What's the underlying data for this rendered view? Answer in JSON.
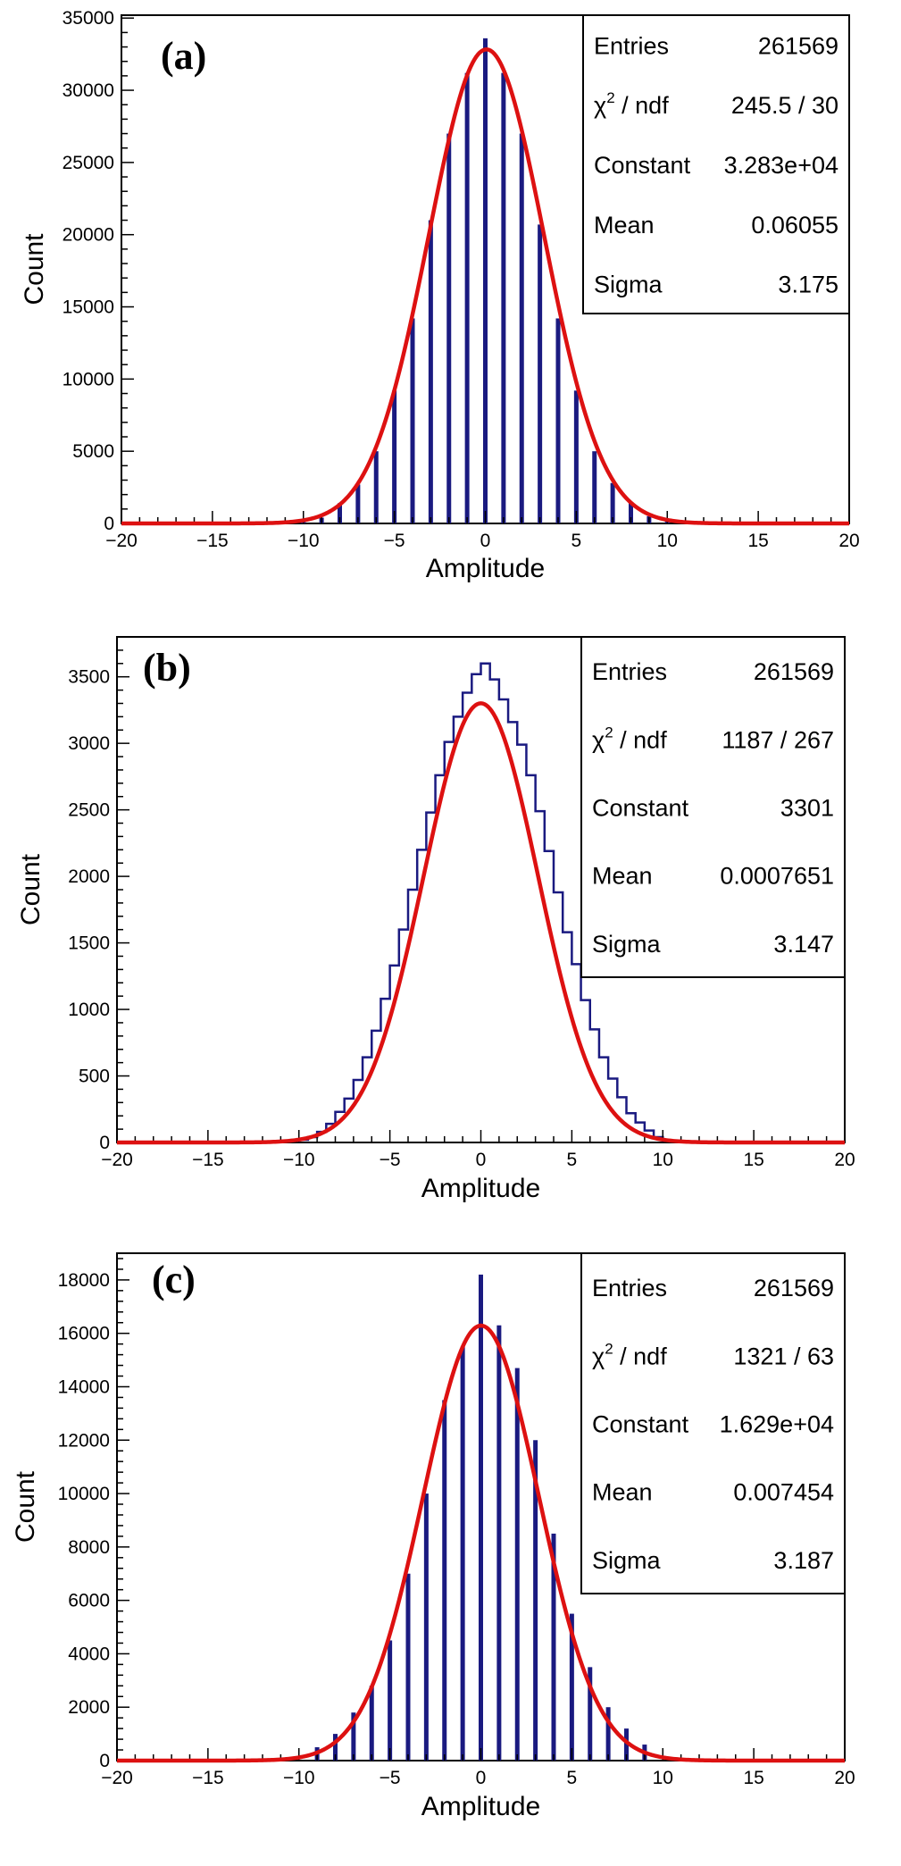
{
  "chart_data": [
    {
      "type": "bar",
      "panel_label": "(a)",
      "title": "",
      "xlabel": "Amplitude",
      "ylabel": "Count",
      "xlim": [
        -20,
        20
      ],
      "ylim": [
        0,
        35200
      ],
      "xticks": [
        -20,
        -15,
        -10,
        -5,
        0,
        5,
        10,
        15,
        20
      ],
      "xtick_labels": [
        "−20",
        "−15",
        "−10",
        "−5",
        "0",
        "5",
        "10",
        "15",
        "20"
      ],
      "yticks": [
        0,
        5000,
        10000,
        15000,
        20000,
        25000,
        30000,
        35000
      ],
      "ytick_labels": [
        "0",
        "5000",
        "10000",
        "15000",
        "20000",
        "25000",
        "30000",
        "35000"
      ],
      "grid": false,
      "series": [
        {
          "name": "histogram",
          "kind": "bars",
          "color": "#1a1a80",
          "x": [
            -10,
            -9,
            -8,
            -7,
            -6,
            -5,
            -4,
            -3,
            -2,
            -1,
            0,
            1,
            2,
            3,
            4,
            5,
            6,
            7,
            8,
            9,
            10
          ],
          "values": [
            140,
            400,
            1400,
            2700,
            5000,
            9200,
            14200,
            21000,
            27000,
            31200,
            33600,
            31200,
            27000,
            20700,
            14200,
            9200,
            5000,
            2800,
            1400,
            500,
            150
          ]
        },
        {
          "name": "Gaussian fit",
          "kind": "fit",
          "color": "#dd1111",
          "constant": 32830,
          "mean": 0.06055,
          "sigma": 3.175
        }
      ],
      "stats": {
        "rows": [
          {
            "label": "Entries",
            "value": "261569"
          },
          {
            "label": "χ",
            "sup": "2",
            "label_suffix": " / ndf",
            "value": "245.5 / 30"
          },
          {
            "label": "Constant",
            "value": "3.283e+04"
          },
          {
            "label": "Mean",
            "value": "0.06055"
          },
          {
            "label": "Sigma",
            "value": "3.175"
          }
        ]
      }
    },
    {
      "type": "bar",
      "panel_label": "(b)",
      "title": "",
      "xlabel": "Amplitude",
      "ylabel": "Count",
      "xlim": [
        -20,
        20
      ],
      "ylim": [
        0,
        3800
      ],
      "xticks": [
        -20,
        -15,
        -10,
        -5,
        0,
        5,
        10,
        15,
        20
      ],
      "xtick_labels": [
        "−20",
        "−15",
        "−10",
        "−5",
        "0",
        "5",
        "10",
        "15",
        "20"
      ],
      "yticks": [
        0,
        500,
        1000,
        1500,
        2000,
        2500,
        3000,
        3500
      ],
      "ytick_labels": [
        "0",
        "500",
        "1000",
        "1500",
        "2000",
        "2500",
        "3000",
        "3500"
      ],
      "grid": false,
      "series": [
        {
          "name": "histogram",
          "kind": "step",
          "color": "#1a1a80",
          "bin_edges": [
            -10,
            -9.5,
            -9,
            -8.5,
            -8,
            -7.5,
            -7,
            -6.5,
            -6,
            -5.5,
            -5,
            -4.5,
            -4,
            -3.5,
            -3,
            -2.5,
            -2,
            -1.5,
            -1,
            -0.5,
            0,
            0.5,
            1,
            1.5,
            2,
            2.5,
            3,
            3.5,
            4,
            4.5,
            5,
            5.5,
            6,
            6.5,
            7,
            7.5,
            8,
            8.5,
            9,
            9.5,
            10
          ],
          "values": [
            20,
            40,
            80,
            140,
            230,
            330,
            470,
            640,
            840,
            1080,
            1330,
            1600,
            1900,
            2200,
            2480,
            2760,
            3010,
            3200,
            3380,
            3520,
            3600,
            3480,
            3330,
            3160,
            2990,
            2760,
            2490,
            2190,
            1880,
            1580,
            1340,
            1070,
            850,
            640,
            480,
            340,
            220,
            150,
            90,
            40
          ]
        },
        {
          "name": "Gaussian fit",
          "kind": "fit",
          "color": "#dd1111",
          "constant": 3301,
          "mean": 0.0007651,
          "sigma": 3.147
        }
      ],
      "stats": {
        "rows": [
          {
            "label": "Entries",
            "value": "261569"
          },
          {
            "label": "χ",
            "sup": "2",
            "label_suffix": " / ndf",
            "value": "1187 / 267"
          },
          {
            "label": "Constant",
            "value": "3301"
          },
          {
            "label": "Mean",
            "value": "0.0007651"
          },
          {
            "label": "Sigma",
            "value": "3.147"
          }
        ]
      }
    },
    {
      "type": "bar",
      "panel_label": "(c)",
      "title": "",
      "xlabel": "Amplitude",
      "ylabel": "Count",
      "xlim": [
        -20,
        20
      ],
      "ylim": [
        0,
        19000
      ],
      "xticks": [
        -20,
        -15,
        -10,
        -5,
        0,
        5,
        10,
        15,
        20
      ],
      "xtick_labels": [
        "−20",
        "−15",
        "−10",
        "−5",
        "0",
        "5",
        "10",
        "15",
        "20"
      ],
      "yticks": [
        0,
        2000,
        4000,
        6000,
        8000,
        10000,
        12000,
        14000,
        16000,
        18000
      ],
      "ytick_labels": [
        "0",
        "2000",
        "4000",
        "6000",
        "8000",
        "10000",
        "12000",
        "14000",
        "16000",
        "18000"
      ],
      "grid": false,
      "series": [
        {
          "name": "histogram",
          "kind": "bars",
          "color": "#1a1a80",
          "x": [
            -9,
            -8,
            -7,
            -6,
            -5,
            -4,
            -3,
            -2,
            -1,
            0,
            1,
            2,
            3,
            4,
            5,
            6,
            7,
            8,
            9
          ],
          "values": [
            500,
            1000,
            1800,
            2800,
            4500,
            7000,
            10000,
            13500,
            15500,
            18200,
            16300,
            14700,
            12000,
            8500,
            5500,
            3500,
            2000,
            1200,
            600
          ]
        },
        {
          "name": "Gaussian fit",
          "kind": "fit",
          "color": "#dd1111",
          "constant": 16290,
          "mean": 0.007454,
          "sigma": 3.187
        }
      ],
      "stats": {
        "rows": [
          {
            "label": "Entries",
            "value": "261569"
          },
          {
            "label": "χ",
            "sup": "2",
            "label_suffix": " / ndf",
            "value": "1321 / 63"
          },
          {
            "label": "Constant",
            "value": "1.629e+04"
          },
          {
            "label": "Mean",
            "value": "0.007454"
          },
          {
            "label": "Sigma",
            "value": "3.187"
          }
        ]
      }
    }
  ]
}
